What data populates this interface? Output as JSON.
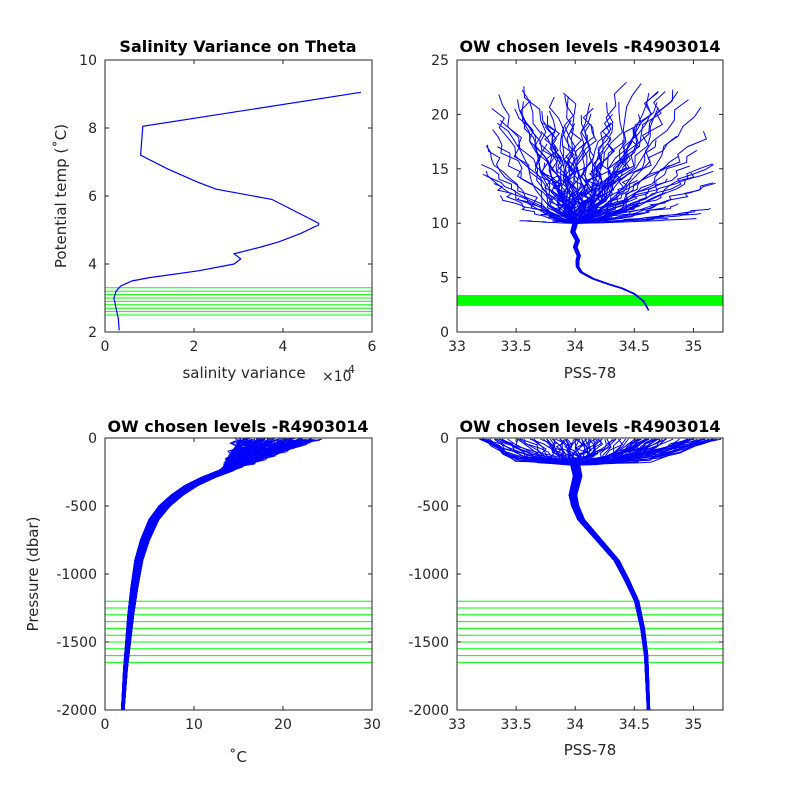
{
  "colors": {
    "profile": "#0000ff",
    "levels": "#00ff00",
    "axes": "#262626"
  },
  "chart_data": [
    {
      "type": "line",
      "title": "Salinity Variance on Theta",
      "xlabel": "salinity variance",
      "x_exponent_base": "×10",
      "x_exponent_power": "-4",
      "ylabel": "Potential temp (˚C)",
      "xlim": [
        0,
        6
      ],
      "ylim": [
        2,
        10
      ],
      "xticks": [
        0,
        2,
        4,
        6
      ],
      "yticks": [
        2,
        4,
        6,
        8,
        10
      ],
      "x_tick_labels": [
        "0",
        "2",
        "4",
        "6"
      ],
      "y_tick_labels": [
        "2",
        "4",
        "6",
        "8",
        "10"
      ],
      "series": [
        {
          "x": [
            0.32,
            0.3,
            0.25,
            0.2,
            0.25,
            0.35,
            0.6,
            1.0,
            2.1,
            2.9,
            3.05,
            2.9,
            3.5,
            3.9,
            4.4,
            4.8,
            4.8,
            3.75,
            2.5,
            2.1,
            1.4,
            0.8,
            0.85,
            5.75
          ],
          "y": [
            2.05,
            2.4,
            2.7,
            3.0,
            3.2,
            3.35,
            3.5,
            3.6,
            3.8,
            4.0,
            4.15,
            4.3,
            4.5,
            4.65,
            4.9,
            5.15,
            5.2,
            5.9,
            6.2,
            6.4,
            6.8,
            7.2,
            8.05,
            9.05
          ]
        }
      ],
      "levels": [
        2.5,
        2.6,
        2.7,
        2.8,
        2.9,
        3.0,
        3.1,
        3.2,
        3.3
      ]
    },
    {
      "type": "line",
      "title": "OW chosen levels -R4903014",
      "xlabel": "PSS-78",
      "ylabel": "",
      "xlim": [
        33,
        35.25
      ],
      "ylim": [
        0,
        25
      ],
      "xticks": [
        33,
        33.5,
        34,
        34.5,
        35
      ],
      "yticks": [
        0,
        5,
        10,
        15,
        20,
        25
      ],
      "x_tick_labels": [
        "33",
        "33.5",
        "34",
        "34.5",
        "35"
      ],
      "y_tick_labels": [
        "0",
        "5",
        "10",
        "15",
        "20",
        "25"
      ],
      "stem": {
        "x": [
          34.62,
          34.58,
          34.5,
          34.4,
          34.28,
          34.15,
          34.05,
          34.02,
          34.02,
          34.03,
          34.0,
          34.02,
          33.98,
          34.0
        ],
        "y": [
          2.0,
          2.8,
          3.5,
          4.0,
          4.4,
          4.9,
          5.5,
          6.0,
          6.6,
          7.0,
          7.8,
          8.4,
          9.2,
          10.0
        ]
      },
      "levels": [
        2.5,
        2.6,
        2.7,
        2.8,
        2.9,
        3.0,
        3.1,
        3.2,
        3.3
      ],
      "profile_count": 120
    },
    {
      "type": "line",
      "title": "OW chosen levels -R4903014",
      "xlabel": "˚C",
      "ylabel": "Pressure (dbar)",
      "xlim": [
        0,
        30
      ],
      "ylim": [
        -2000,
        0
      ],
      "xticks": [
        0,
        10,
        20,
        30
      ],
      "yticks": [
        -2000,
        -1500,
        -1000,
        -500,
        0
      ],
      "x_tick_labels": [
        "0",
        "10",
        "20",
        "30"
      ],
      "y_tick_labels": [
        "-2000",
        "-1500",
        "-1000",
        "-500",
        "0"
      ],
      "stem": {
        "x": [
          2.0,
          2.3,
          2.6,
          2.9,
          3.3,
          3.8,
          4.5,
          5.5,
          6.7,
          8.1,
          9.7,
          11.6,
          13.6
        ],
        "y": [
          -2000,
          -1700,
          -1500,
          -1300,
          -1100,
          -900,
          -750,
          -600,
          -500,
          -420,
          -350,
          -290,
          -240
        ]
      },
      "levels": [
        -1200,
        -1250,
        -1300,
        -1350,
        -1400,
        -1450,
        -1500,
        -1550,
        -1600,
        -1650
      ],
      "profile_count": 120
    },
    {
      "type": "line",
      "title": "OW chosen levels -R4903014",
      "xlabel": "PSS-78",
      "ylabel": "",
      "xlim": [
        33,
        35.25
      ],
      "ylim": [
        -2000,
        0
      ],
      "xticks": [
        33,
        33.5,
        34,
        34.5,
        35
      ],
      "yticks": [
        -2000,
        -1500,
        -1000,
        -500,
        0
      ],
      "x_tick_labels": [
        "33",
        "33.5",
        "34",
        "34.5",
        "35"
      ],
      "y_tick_labels": [
        "-2000",
        "-1500",
        "-1000",
        "-500",
        "0"
      ],
      "stem": {
        "x": [
          34.62,
          34.61,
          34.6,
          34.57,
          34.52,
          34.44,
          34.35,
          34.25,
          34.15,
          34.05,
          34.0,
          33.98,
          34.0,
          34.02,
          34.0
        ],
        "y": [
          -2000,
          -1800,
          -1600,
          -1400,
          -1200,
          -1050,
          -900,
          -800,
          -700,
          -600,
          -500,
          -420,
          -350,
          -280,
          -200
        ]
      },
      "levels": [
        -1200,
        -1250,
        -1300,
        -1350,
        -1400,
        -1450,
        -1500,
        -1550,
        -1600,
        -1650
      ],
      "profile_count": 120
    }
  ]
}
